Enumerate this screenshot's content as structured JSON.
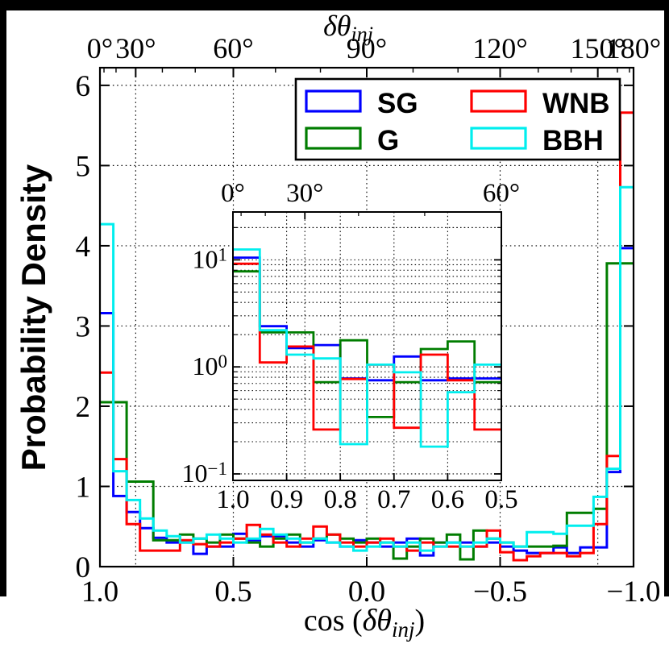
{
  "figure": {
    "background": "#ffffff",
    "frame_color": "#000000",
    "title": {
      "base": "δθ",
      "sub": "inj"
    },
    "xlabel": {
      "pre": "cos (",
      "base": "δθ",
      "sub": "inj",
      "post": ")"
    },
    "ylabel": "Probability Density"
  },
  "legend": {
    "entries": [
      {
        "label": "SG",
        "color": "#0000ff"
      },
      {
        "label": "G",
        "color": "#007d00"
      },
      {
        "label": "WNB",
        "color": "#ff0000"
      },
      {
        "label": "BBH",
        "color": "#00eeee"
      }
    ]
  },
  "main_axes": {
    "x_tick_labels": [
      "1.0",
      "0.5",
      "0.0",
      "−0.5",
      "−1.0"
    ],
    "x_tick_values": [
      1.0,
      0.5,
      0.0,
      -0.5,
      -1.0
    ],
    "top_tick_labels": [
      "0°",
      "30°",
      "60°",
      "90°",
      "120°",
      "150°",
      "180°"
    ],
    "top_tick_degrees": [
      0,
      30,
      60,
      90,
      120,
      150,
      180
    ],
    "top_minor_degrees": [
      10,
      20,
      40,
      50,
      70,
      80,
      100,
      110,
      130,
      140,
      160,
      170
    ],
    "y_tick_labels": [
      "0",
      "1",
      "2",
      "3",
      "4",
      "5",
      "6"
    ],
    "y_tick_values": [
      0,
      1,
      2,
      3,
      4,
      5,
      6
    ],
    "grid_x_cos": [
      0.866,
      0.5,
      0.0,
      -0.5,
      -0.866
    ],
    "grid_y": [
      1,
      2,
      3,
      4,
      5,
      6
    ]
  },
  "inset_axes": {
    "x_tick_labels": [
      "1.0",
      "0.9",
      "0.8",
      "0.7",
      "0.6",
      "0.5"
    ],
    "x_tick_values": [
      1.0,
      0.9,
      0.8,
      0.7,
      0.6,
      0.5
    ],
    "top_tick_labels": [
      "0°",
      "30°",
      "60°"
    ],
    "top_tick_degrees": [
      0,
      30,
      60
    ],
    "top_minor_degrees": [
      10,
      20,
      40,
      50
    ],
    "y_tick_exponents": [
      1,
      0,
      -1
    ],
    "grid_x_cos": [
      0.9,
      0.866,
      0.8,
      0.7,
      0.6
    ]
  },
  "chart_data": [
    {
      "id": "main",
      "type": "step_histogram",
      "title": "δθ_inj (top axis, degrees)",
      "xlabel": "cos(δθ_inj)",
      "ylabel": "Probability Density",
      "xlim": [
        1.0,
        -1.0
      ],
      "ylim": [
        0,
        6.22
      ],
      "grid": true,
      "legend_position": "upper center",
      "bin_start": 1.0,
      "bin_width": -0.05,
      "series": [
        {
          "name": "SG",
          "color": "#0000ff",
          "values": [
            3.16,
            0.88,
            0.68,
            0.48,
            0.36,
            0.3,
            0.3,
            0.16,
            0.25,
            0.25,
            0.41,
            0.33,
            0.38,
            0.38,
            0.3,
            0.25,
            0.33,
            0.3,
            0.25,
            0.33,
            0.3,
            0.25,
            0.3,
            0.35,
            0.14,
            0.3,
            0.3,
            0.3,
            0.25,
            0.3,
            0.25,
            0.2,
            0.17,
            0.17,
            0.24,
            0.17,
            0.24,
            0.24,
            1.18,
            3.97
          ]
        },
        {
          "name": "G",
          "color": "#007d00",
          "values": [
            2.05,
            2.05,
            1.06,
            1.06,
            0.33,
            0.33,
            0.4,
            0.35,
            0.3,
            0.4,
            0.35,
            0.3,
            0.25,
            0.35,
            0.4,
            0.3,
            0.35,
            0.4,
            0.35,
            0.3,
            0.35,
            0.3,
            0.1,
            0.25,
            0.35,
            0.3,
            0.4,
            0.09,
            0.45,
            0.35,
            0.3,
            0.25,
            0.25,
            0.25,
            0.26,
            0.67,
            0.67,
            0.72,
            3.78,
            3.78
          ]
        },
        {
          "name": "WNB",
          "color": "#ff0000",
          "values": [
            2.42,
            1.34,
            0.53,
            0.2,
            0.2,
            0.2,
            0.33,
            0.28,
            0.25,
            0.3,
            0.35,
            0.52,
            0.4,
            0.3,
            0.25,
            0.35,
            0.5,
            0.4,
            0.3,
            0.25,
            0.3,
            0.35,
            0.25,
            0.2,
            0.3,
            0.25,
            0.25,
            0.25,
            0.25,
            0.45,
            0.18,
            0.08,
            0.13,
            0.17,
            0.17,
            0.13,
            0.17,
            0.53,
            1.38,
            5.66
          ]
        },
        {
          "name": "BBH",
          "color": "#00eeee",
          "values": [
            4.27,
            1.19,
            0.83,
            0.6,
            0.45,
            0.38,
            0.3,
            0.35,
            0.4,
            0.35,
            0.3,
            0.35,
            0.47,
            0.4,
            0.35,
            0.3,
            0.35,
            0.3,
            0.25,
            0.2,
            0.25,
            0.3,
            0.25,
            0.3,
            0.2,
            0.25,
            0.3,
            0.25,
            0.3,
            0.35,
            0.3,
            0.25,
            0.43,
            0.43,
            0.41,
            0.51,
            0.51,
            0.87,
            1.22,
            4.73
          ]
        }
      ]
    },
    {
      "id": "inset",
      "type": "step_histogram",
      "yscale": "log",
      "xlim": [
        1.0,
        0.5
      ],
      "ylim": [
        0.087,
        28
      ],
      "grid": true,
      "bin_start": 1.0,
      "bin_width": -0.05,
      "series": [
        {
          "name": "SG",
          "color": "#0000ff",
          "values": [
            10.5,
            2.4,
            1.5,
            1.6,
            0.78,
            0.75,
            1.25,
            0.75,
            0.78,
            0.78
          ]
        },
        {
          "name": "G",
          "color": "#007d00",
          "values": [
            7.8,
            2.1,
            2.1,
            0.72,
            1.77,
            0.34,
            0.72,
            1.47,
            1.73,
            0.72
          ]
        },
        {
          "name": "WNB",
          "color": "#ff0000",
          "values": [
            9.2,
            1.1,
            1.55,
            0.26,
            0.77,
            1.05,
            0.27,
            1.3,
            0.75,
            0.26
          ]
        },
        {
          "name": "BBH",
          "color": "#00eeee",
          "values": [
            12.5,
            2.2,
            1.3,
            1.2,
            0.19,
            1.05,
            0.89,
            0.18,
            0.58,
            1.05
          ]
        }
      ]
    }
  ]
}
